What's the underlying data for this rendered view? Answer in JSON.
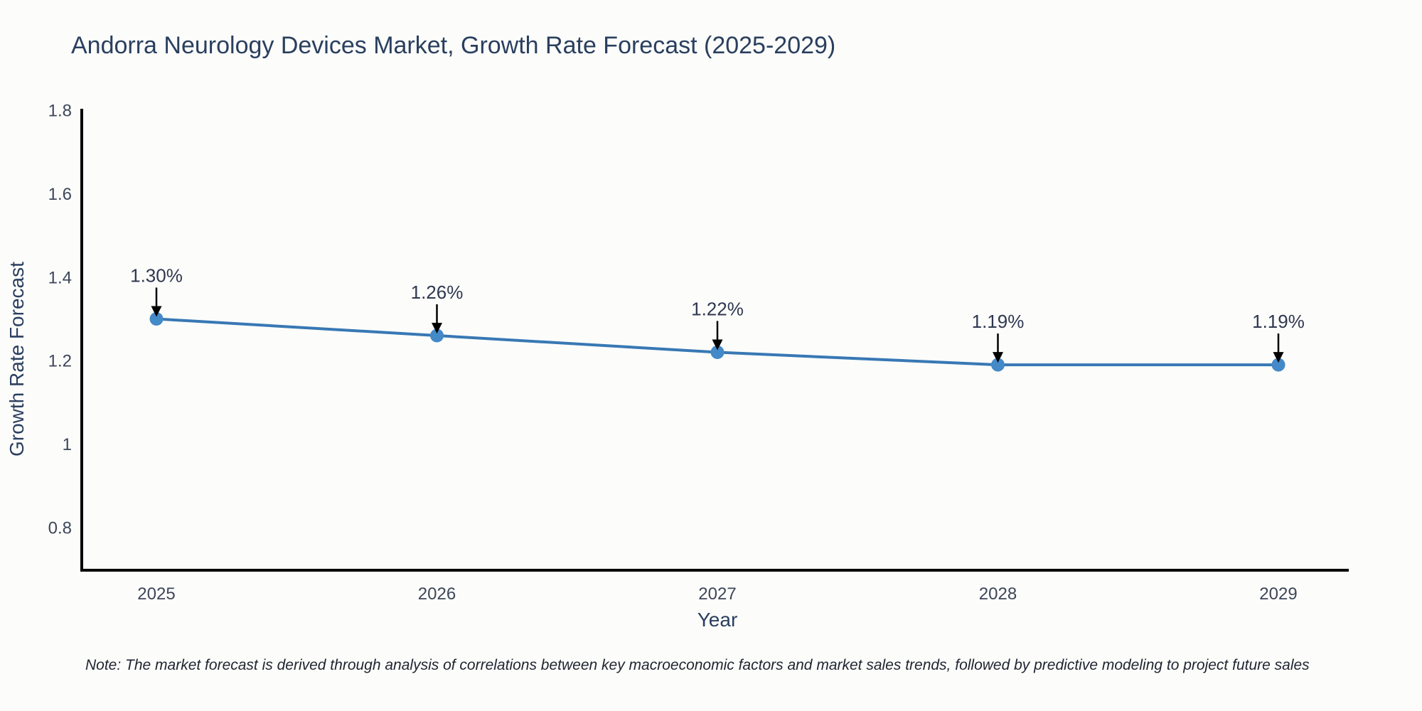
{
  "note": "Note: The market forecast is derived through analysis of correlations between key macroeconomic factors and market sales trends, followed by predictive modeling to project future sales",
  "colors": {
    "background": "#fcfcfa",
    "title_text": "#2a3f5f",
    "tick_text": "#3d465a",
    "annotation_text": "#2f3850",
    "axis_line": "#000000",
    "series_line": "#3878b4",
    "marker_fill": "#4489c8",
    "arrow": "#000000"
  },
  "chart_data": {
    "type": "line",
    "title": "Andorra Neurology Devices Market, Growth Rate Forecast (2025-2029)",
    "xlabel": "Year",
    "ylabel": "Growth Rate Forecast",
    "x": [
      2025,
      2026,
      2027,
      2028,
      2029
    ],
    "xtick_labels": [
      "2025",
      "2026",
      "2027",
      "2028",
      "2029"
    ],
    "values": [
      1.3,
      1.26,
      1.22,
      1.19,
      1.19
    ],
    "point_labels": [
      "1.30%",
      "1.26%",
      "1.22%",
      "1.19%",
      "1.19%"
    ],
    "yticks": [
      1.8,
      1.6,
      1.4,
      1.2,
      1.0,
      0.8
    ],
    "ytick_labels": [
      "1.8",
      "1.6",
      "1.4",
      "1.2",
      "1",
      "0.8"
    ],
    "ylim": [
      0.69,
      1.8
    ],
    "grid": false,
    "legend": "none",
    "annotation_style": "value labels above points with downward black arrows"
  }
}
